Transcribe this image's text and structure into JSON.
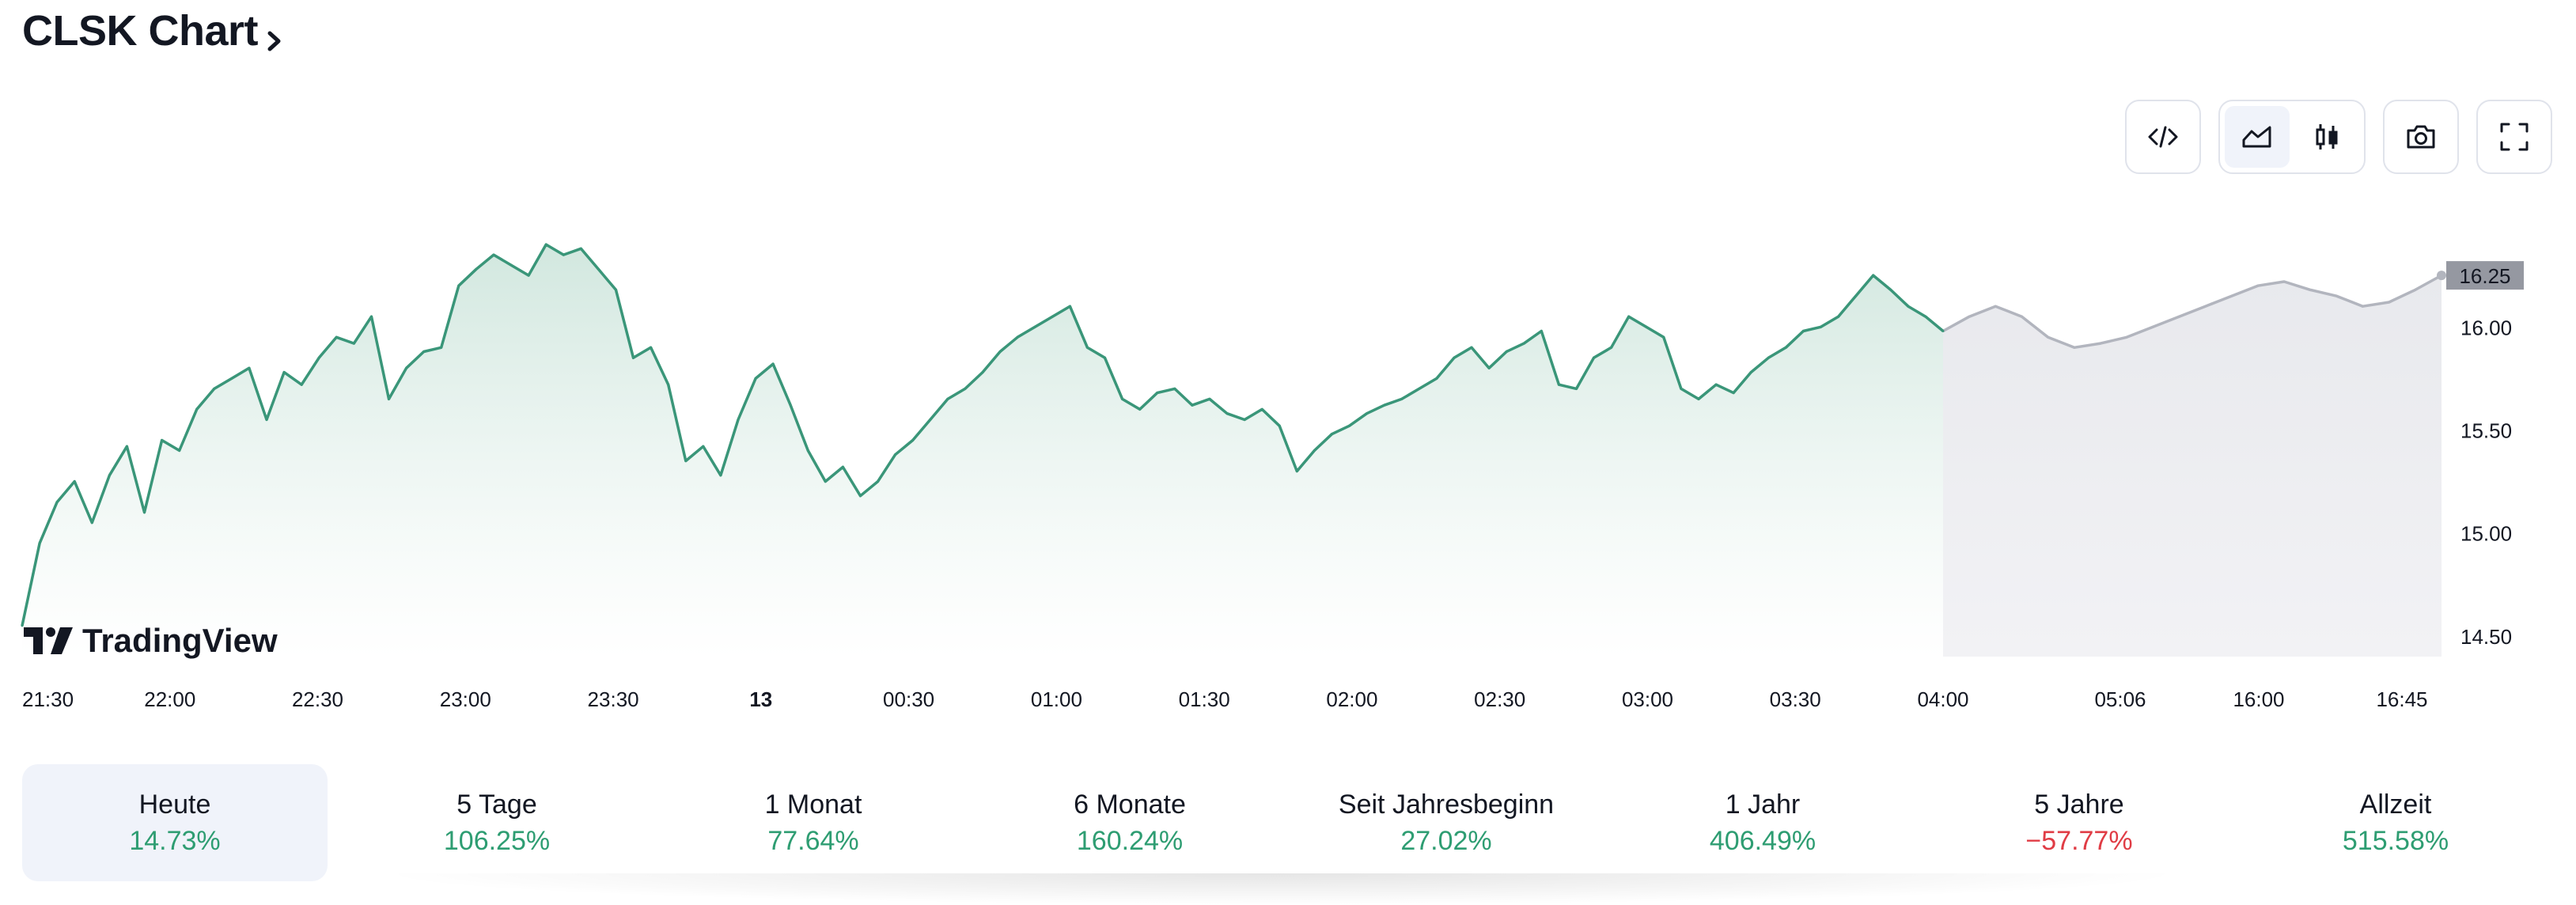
{
  "header": {
    "title": "CLSK Chart"
  },
  "toolbar": {
    "icons": [
      "embed-code-icon",
      "area-chart-icon",
      "candlestick-icon",
      "camera-icon",
      "fullscreen-icon"
    ],
    "active": "area-chart-icon"
  },
  "branding": {
    "logo_text": "TradingView"
  },
  "colors": {
    "up": "#3a9679",
    "area_top": "#cfe6dd",
    "future_line": "#b2b5be",
    "future_area": "#eeeef1",
    "price_badge": "#9598a1",
    "negative": "#e03c45",
    "positive": "#2e9d72"
  },
  "chart_data": {
    "type": "area",
    "title": "CLSK Chart",
    "ylim": [
      14.4,
      16.55
    ],
    "y_ticks": [
      "16.00",
      "15.50",
      "15.00",
      "14.50"
    ],
    "x_tick_labels": [
      "21:30",
      "22:00",
      "22:30",
      "23:00",
      "23:30",
      "13",
      "00:30",
      "01:00",
      "01:30",
      "02:00",
      "02:30",
      "03:00",
      "03:30",
      "04:00",
      "05:06",
      "16:00",
      "16:45"
    ],
    "last_price": "16.25",
    "grid": false,
    "series": [
      {
        "values": [
          14.55,
          14.95,
          15.15,
          15.25,
          15.05,
          15.28,
          15.42,
          15.1,
          15.45,
          15.4,
          15.6,
          15.7,
          15.75,
          15.8,
          15.55,
          15.78,
          15.72,
          15.85,
          15.95,
          15.92,
          16.05,
          15.65,
          15.8,
          15.88,
          15.9,
          16.2,
          16.28,
          16.35,
          16.3,
          16.25,
          16.4,
          16.35,
          16.38,
          16.28,
          16.18,
          15.85,
          15.9,
          15.72,
          15.35,
          15.42,
          15.28,
          15.55,
          15.75,
          15.82,
          15.62,
          15.4,
          15.25,
          15.32,
          15.18,
          15.25,
          15.38,
          15.45,
          15.55,
          15.65,
          15.7,
          15.78,
          15.88,
          15.95,
          16.0,
          16.05,
          16.1,
          15.9,
          15.85,
          15.65,
          15.6,
          15.68,
          15.7,
          15.62,
          15.65,
          15.58,
          15.55,
          15.6,
          15.52,
          15.3,
          15.4,
          15.48,
          15.52,
          15.58,
          15.62,
          15.65,
          15.7,
          15.75,
          15.85,
          15.9,
          15.8,
          15.88,
          15.92,
          15.98,
          15.72,
          15.7,
          15.85,
          15.9,
          16.05,
          16.0,
          15.95,
          15.7,
          15.65,
          15.72,
          15.68,
          15.78,
          15.85,
          15.9,
          15.98,
          16.0,
          16.05,
          16.15,
          16.25,
          16.18,
          16.1,
          16.05,
          15.98
        ],
        "x": "21:30 – 04:00"
      },
      {
        "values": [
          15.98,
          16.05,
          16.1,
          16.05,
          15.95,
          15.9,
          15.92,
          15.95,
          16.0,
          16.05,
          16.1,
          16.15,
          16.2,
          16.22,
          16.18,
          16.15,
          16.1,
          16.12,
          16.18,
          16.25
        ],
        "x": "04:00 – 16:45"
      }
    ]
  },
  "periods": [
    {
      "label": "Heute",
      "value": "14.73%",
      "sign": "pos",
      "active": true
    },
    {
      "label": "5 Tage",
      "value": "106.25%",
      "sign": "pos",
      "active": false
    },
    {
      "label": "1 Monat",
      "value": "77.64%",
      "sign": "pos",
      "active": false
    },
    {
      "label": "6 Monate",
      "value": "160.24%",
      "sign": "pos",
      "active": false
    },
    {
      "label": "Seit Jahresbeginn",
      "value": "27.02%",
      "sign": "pos",
      "active": false
    },
    {
      "label": "1 Jahr",
      "value": "406.49%",
      "sign": "pos",
      "active": false
    },
    {
      "label": "5 Jahre",
      "value": "−57.77%",
      "sign": "neg",
      "active": false
    },
    {
      "label": "Allzeit",
      "value": "515.58%",
      "sign": "pos",
      "active": false
    }
  ]
}
